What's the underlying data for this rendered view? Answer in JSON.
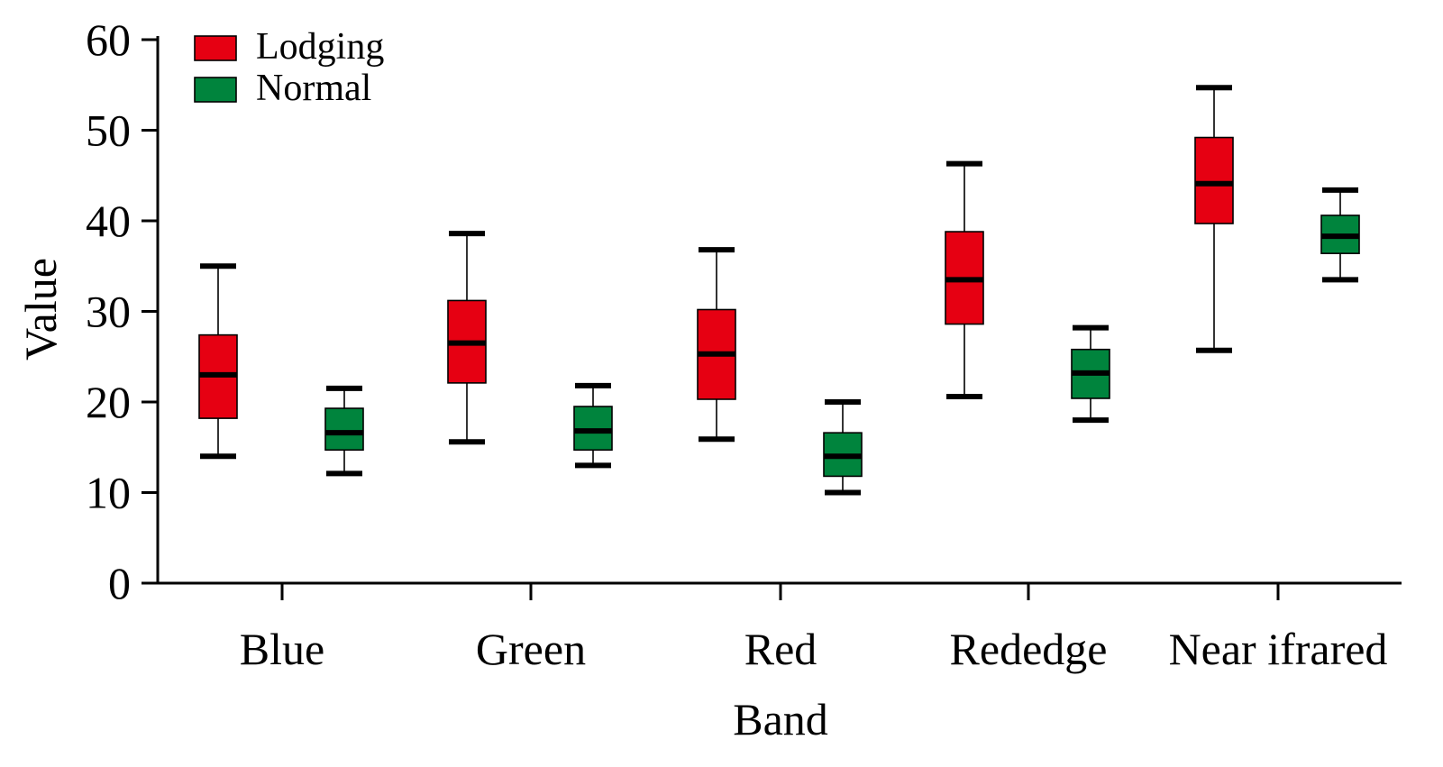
{
  "chart_data": {
    "type": "boxplot",
    "xlabel": "Band",
    "ylabel": "Value",
    "ylim": [
      0,
      60
    ],
    "yticks": [
      0,
      10,
      20,
      30,
      40,
      50,
      60
    ],
    "categories": [
      "Blue",
      "Green",
      "Red",
      "Rededge",
      "Near ifrared"
    ],
    "legend_position": "top-left",
    "grid": false,
    "series": [
      {
        "name": "Lodging",
        "color": "#e60012",
        "boxes": [
          {
            "min": 14.0,
            "q1": 18.2,
            "median": 23.0,
            "q3": 27.4,
            "max": 35.0
          },
          {
            "min": 15.6,
            "q1": 22.1,
            "median": 26.5,
            "q3": 31.2,
            "max": 38.6
          },
          {
            "min": 15.9,
            "q1": 20.3,
            "median": 25.3,
            "q3": 30.2,
            "max": 36.8
          },
          {
            "min": 20.6,
            "q1": 28.6,
            "median": 33.5,
            "q3": 38.8,
            "max": 46.3
          },
          {
            "min": 25.7,
            "q1": 39.7,
            "median": 44.1,
            "q3": 49.2,
            "max": 54.7
          }
        ]
      },
      {
        "name": "Normal",
        "color": "#00843d",
        "boxes": [
          {
            "min": 12.1,
            "q1": 14.7,
            "median": 16.6,
            "q3": 19.3,
            "max": 21.5
          },
          {
            "min": 13.0,
            "q1": 14.7,
            "median": 16.8,
            "q3": 19.5,
            "max": 21.8
          },
          {
            "min": 10.0,
            "q1": 11.8,
            "median": 14.0,
            "q3": 16.6,
            "max": 20.0
          },
          {
            "min": 18.0,
            "q1": 20.4,
            "median": 23.2,
            "q3": 25.8,
            "max": 28.2
          },
          {
            "min": 33.5,
            "q1": 36.4,
            "median": 38.3,
            "q3": 40.6,
            "max": 43.4
          }
        ]
      }
    ]
  }
}
